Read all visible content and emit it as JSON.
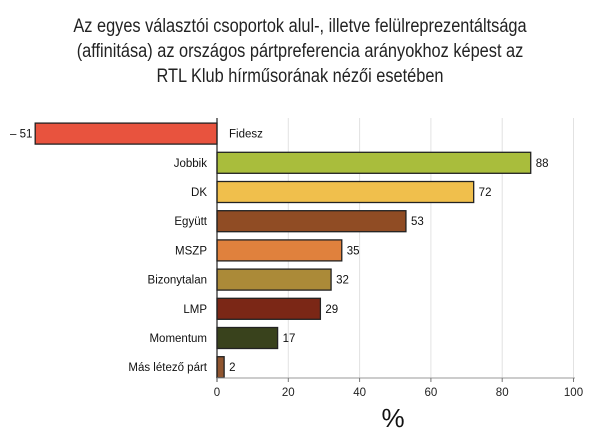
{
  "chart_data": {
    "type": "bar",
    "orientation": "horizontal",
    "title_lines": [
      "Az egyes választói csoportok alul-, illetve felülreprezentáltsága",
      "(affinitása) az országos pártpreferencia arányokhoz képest az",
      "RTL Klub hírműsorának nézői esetében"
    ],
    "xlabel": "%",
    "xlim": [
      -51,
      100
    ],
    "xticks": [
      0,
      20,
      40,
      60,
      80,
      100
    ],
    "grid": true,
    "categories": [
      "Fidesz",
      "Jobbik",
      "DK",
      "Együtt",
      "MSZP",
      "Bizonytalan",
      "LMP",
      "Momentum",
      "Más létező párt"
    ],
    "values": [
      -51,
      88,
      72,
      53,
      35,
      32,
      29,
      17,
      2
    ],
    "value_labels": [
      "– 51",
      "88",
      "72",
      "53",
      "35",
      "32",
      "29",
      "17",
      "2"
    ],
    "colors": [
      "#e8533e",
      "#a9bd3c",
      "#f0bf4c",
      "#904c24",
      "#e0813d",
      "#ab8a38",
      "#7b2716",
      "#39421c",
      "#8f5530"
    ]
  }
}
